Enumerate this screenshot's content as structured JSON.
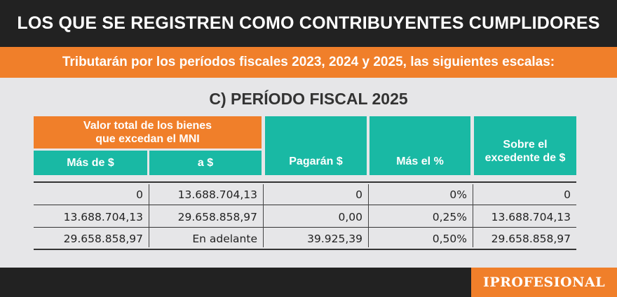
{
  "header": {
    "title": "LOS QUE SE REGISTREN COMO CONTRIBUYENTES CUMPLIDORES",
    "subtitle": "Tributarán por los períodos fiscales 2023, 2024 y 2025, las siguientes escalas:"
  },
  "section_title": "C) PERÍODO FISCAL 2025",
  "table": {
    "group_header": [
      "Valor total de los bienes",
      "que excedan el MNI"
    ],
    "columns": {
      "mas_de": "Más de $",
      "a": "a $",
      "pagaran": "Pagarán $",
      "mas_el": "Más el %",
      "sobre": [
        "Sobre el",
        "excedente de $"
      ]
    },
    "rows": [
      {
        "mas_de": "0",
        "a": "13.688.704,13",
        "pagaran": "0",
        "mas_el": "0%",
        "sobre": "0"
      },
      {
        "mas_de": "13.688.704,13",
        "a": "29.658.858,97",
        "pagaran": "0,00",
        "mas_el": "0,25%",
        "sobre": "13.688.704,13"
      },
      {
        "mas_de": "29.658.858,97",
        "a": "En adelante",
        "pagaran": "39.925,39",
        "mas_el": "0,50%",
        "sobre": "29.658.858,97"
      }
    ]
  },
  "footer": {
    "logo_text": "IPROFESIONAL"
  },
  "colors": {
    "accent_orange": "#f07f2a",
    "accent_teal": "#19b9a4",
    "dark": "#222222",
    "background": "#e6e6e8"
  }
}
